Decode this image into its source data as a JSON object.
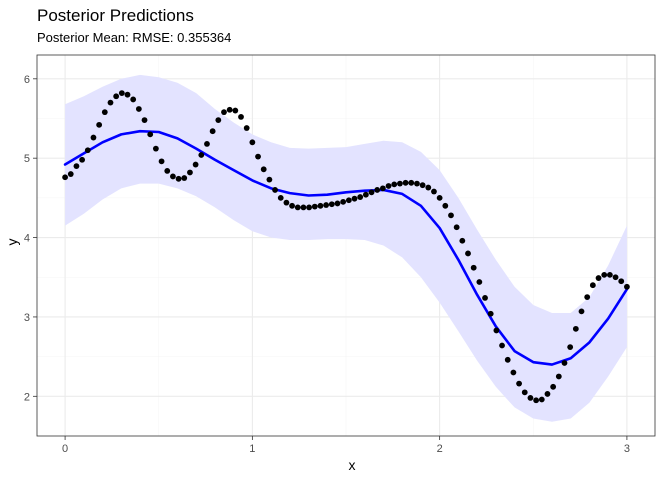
{
  "chart_data": {
    "type": "line",
    "title": "Posterior Predictions",
    "subtitle": "Posterior Mean: RMSE: 0.355364",
    "xlabel": "x",
    "ylabel": "y",
    "xlim": [
      -0.15,
      3.15
    ],
    "ylim": [
      1.5,
      6.3
    ],
    "x_ticks": [
      0,
      1,
      2,
      3
    ],
    "x_tick_labels": [
      "0",
      "1",
      "2",
      "3"
    ],
    "y_ticks": [
      2,
      3,
      4,
      5,
      6
    ],
    "y_tick_labels": [
      "2",
      "3",
      "4",
      "5",
      "6"
    ],
    "grid": true,
    "legend": "none",
    "colors": {
      "mean_line": "#0000ff",
      "band": "#e3e3ff",
      "points": "#000000",
      "grid_major": "#ebebeb",
      "grid_minor": "#f5f5f5",
      "panel_border": "#333333"
    },
    "band": {
      "x": [
        0,
        0.1,
        0.2,
        0.3,
        0.4,
        0.5,
        0.6,
        0.7,
        0.8,
        0.9,
        1.0,
        1.1,
        1.2,
        1.3,
        1.4,
        1.5,
        1.6,
        1.7,
        1.8,
        1.9,
        2.0,
        2.1,
        2.2,
        2.3,
        2.4,
        2.5,
        2.6,
        2.7,
        2.8,
        2.9,
        3.0
      ],
      "lower": [
        4.15,
        4.3,
        4.48,
        4.62,
        4.68,
        4.68,
        4.62,
        4.52,
        4.38,
        4.22,
        4.08,
        4.0,
        3.97,
        3.97,
        3.98,
        3.98,
        3.97,
        3.9,
        3.75,
        3.5,
        3.18,
        2.82,
        2.45,
        2.12,
        1.86,
        1.72,
        1.68,
        1.72,
        1.92,
        2.25,
        2.62
      ],
      "upper": [
        5.68,
        5.78,
        5.9,
        6.0,
        6.05,
        6.02,
        5.95,
        5.82,
        5.62,
        5.45,
        5.3,
        5.2,
        5.13,
        5.12,
        5.13,
        5.14,
        5.18,
        5.22,
        5.2,
        5.08,
        4.85,
        4.5,
        4.1,
        3.72,
        3.38,
        3.15,
        3.05,
        3.05,
        3.25,
        3.65,
        4.15
      ]
    },
    "series": [
      {
        "kind": "line",
        "x": [
          0,
          0.1,
          0.2,
          0.3,
          0.4,
          0.5,
          0.6,
          0.7,
          0.8,
          0.9,
          1.0,
          1.1,
          1.2,
          1.3,
          1.4,
          1.5,
          1.6,
          1.7,
          1.8,
          1.9,
          2.0,
          2.1,
          2.2,
          2.3,
          2.4,
          2.5,
          2.6,
          2.7,
          2.8,
          2.9,
          3.0
        ],
        "y": [
          4.92,
          5.06,
          5.2,
          5.3,
          5.34,
          5.33,
          5.25,
          5.12,
          4.98,
          4.85,
          4.72,
          4.62,
          4.56,
          4.53,
          4.54,
          4.57,
          4.59,
          4.6,
          4.55,
          4.4,
          4.12,
          3.72,
          3.28,
          2.88,
          2.57,
          2.43,
          2.4,
          2.48,
          2.68,
          2.98,
          3.35
        ]
      },
      {
        "kind": "scatter",
        "x": [
          0.0,
          0.0303,
          0.0606,
          0.0909,
          0.1212,
          0.1515,
          0.1818,
          0.2121,
          0.2424,
          0.2727,
          0.303,
          0.3333,
          0.3636,
          0.3939,
          0.4242,
          0.4545,
          0.4848,
          0.5152,
          0.5455,
          0.5758,
          0.6061,
          0.6364,
          0.6667,
          0.697,
          0.7273,
          0.7576,
          0.7879,
          0.8182,
          0.8485,
          0.8788,
          0.9091,
          0.9394,
          0.9697,
          1.0,
          1.0303,
          1.0606,
          1.0909,
          1.1212,
          1.1515,
          1.1818,
          1.2121,
          1.2424,
          1.2727,
          1.303,
          1.3333,
          1.3636,
          1.3939,
          1.4242,
          1.4545,
          1.4848,
          1.5152,
          1.5455,
          1.5758,
          1.6061,
          1.6364,
          1.6667,
          1.697,
          1.7273,
          1.7576,
          1.7879,
          1.8182,
          1.8485,
          1.8788,
          1.9091,
          1.9394,
          1.9697,
          2.0,
          2.0303,
          2.0606,
          2.0909,
          2.1212,
          2.1515,
          2.1818,
          2.2121,
          2.2424,
          2.2727,
          2.303,
          2.3333,
          2.3636,
          2.3939,
          2.4242,
          2.4545,
          2.4848,
          2.5152,
          2.5455,
          2.5758,
          2.6061,
          2.6364,
          2.6667,
          2.697,
          2.7273,
          2.7576,
          2.7879,
          2.8182,
          2.8485,
          2.8788,
          2.9091,
          2.9394,
          2.9697,
          3.0
        ],
        "y": [
          4.76,
          4.8,
          4.9,
          4.98,
          5.1,
          5.26,
          5.42,
          5.58,
          5.7,
          5.78,
          5.82,
          5.8,
          5.74,
          5.62,
          5.48,
          5.3,
          5.12,
          4.96,
          4.84,
          4.77,
          4.74,
          4.75,
          4.82,
          4.92,
          5.04,
          5.18,
          5.34,
          5.48,
          5.58,
          5.61,
          5.6,
          5.52,
          5.38,
          5.2,
          5.02,
          4.86,
          4.73,
          4.6,
          4.5,
          4.44,
          4.4,
          4.38,
          4.38,
          4.38,
          4.39,
          4.4,
          4.41,
          4.42,
          4.43,
          4.45,
          4.47,
          4.49,
          4.51,
          4.54,
          4.57,
          4.6,
          4.62,
          4.65,
          4.67,
          4.68,
          4.69,
          4.69,
          4.68,
          4.66,
          4.63,
          4.58,
          4.5,
          4.4,
          4.28,
          4.13,
          3.96,
          3.8,
          3.62,
          3.44,
          3.24,
          3.04,
          2.83,
          2.64,
          2.46,
          2.3,
          2.16,
          2.05,
          1.98,
          1.95,
          1.96,
          2.03,
          2.12,
          2.25,
          2.42,
          2.62,
          2.85,
          3.07,
          3.25,
          3.4,
          3.49,
          3.53,
          3.53,
          3.5,
          3.45,
          3.38
        ]
      }
    ]
  }
}
